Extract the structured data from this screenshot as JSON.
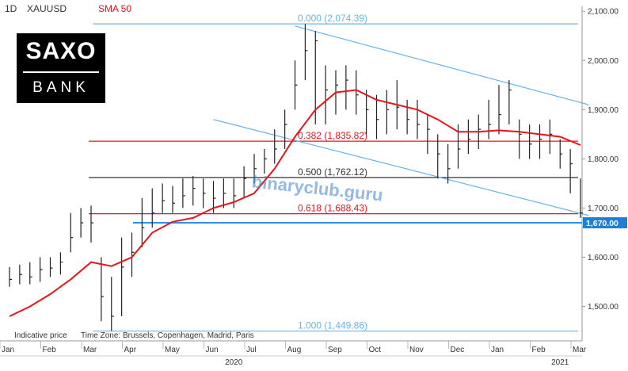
{
  "header": {
    "interval": "1D",
    "symbol": "XAUUSD",
    "indicator": "SMA 50"
  },
  "logo": {
    "line1": "SAXO",
    "line2": "BANK"
  },
  "footer": {
    "indicative": "Indicative price",
    "timezone": "Time Zone: Brussels, Copenhagen, Madrid, Paris"
  },
  "watermark": "binaryclub.guru",
  "colors": {
    "price": "#222222",
    "sma": "#e8141b",
    "fib_blue": "#6ab4e8",
    "fib_red": "#e8141b",
    "fib_black": "#333333",
    "channel": "#6ab4e8",
    "support": "#2f8fe0",
    "price_label_bg": "#1e7fd6",
    "watermark": "#3b7fd0"
  },
  "chart_data": {
    "type": "line",
    "title": "",
    "xlabel": "",
    "ylabel": "",
    "ylim": [
      1430,
      2110
    ],
    "grid": false,
    "legend": "none",
    "yticks": [
      "2,100.00",
      "2,000.00",
      "1,900.00",
      "1,800.00",
      "1,700.00",
      "1,600.00",
      "1,500.00"
    ],
    "ytick_values": [
      2100,
      2000,
      1900,
      1800,
      1700,
      1600,
      1500
    ],
    "month_labels": [
      "Jan",
      "Feb",
      "Mar",
      "Apr",
      "May",
      "Jun",
      "Jul",
      "Aug",
      "Sep",
      "Oct",
      "Nov",
      "Dec",
      "Jan",
      "Feb",
      "Mar"
    ],
    "month_index": [
      0,
      1,
      2,
      3,
      4,
      5,
      6,
      7,
      8,
      9,
      10,
      11,
      12,
      13,
      14
    ],
    "year_labels": [
      {
        "text": "2020",
        "month": 5.5
      },
      {
        "text": "2021",
        "month": 13.5
      }
    ],
    "series": [
      {
        "name": "XAUUSD",
        "style": "bars",
        "x": [
          0.0,
          0.25,
          0.5,
          0.75,
          1.0,
          1.25,
          1.5,
          1.75,
          2.0,
          2.25,
          2.5,
          2.75,
          3.0,
          3.25,
          3.5,
          3.75,
          4.0,
          4.25,
          4.5,
          4.75,
          5.0,
          5.25,
          5.5,
          5.75,
          6.0,
          6.25,
          6.5,
          6.75,
          7.0,
          7.25,
          7.5,
          7.75,
          8.0,
          8.25,
          8.5,
          8.75,
          9.0,
          9.25,
          9.5,
          9.75,
          10.0,
          10.25,
          10.5,
          10.75,
          11.0,
          11.25,
          11.5,
          11.75,
          12.0,
          12.25,
          12.5,
          12.75,
          13.0,
          13.25,
          13.5,
          13.75,
          14.0
        ],
        "values": [
          1555,
          1565,
          1560,
          1575,
          1578,
          1590,
          1640,
          1670,
          1670,
          1520,
          1480,
          1580,
          1610,
          1660,
          1690,
          1715,
          1710,
          1725,
          1740,
          1730,
          1720,
          1730,
          1725,
          1760,
          1780,
          1800,
          1820,
          1870,
          1950,
          2020,
          2040,
          1940,
          1950,
          1960,
          1930,
          1900,
          1880,
          1900,
          1905,
          1880,
          1870,
          1860,
          1810,
          1780,
          1820,
          1840,
          1860,
          1870,
          1890,
          1940,
          1850,
          1830,
          1840,
          1850,
          1810,
          1790,
          1690
        ],
        "high": [
          1580,
          1585,
          1590,
          1600,
          1600,
          1610,
          1690,
          1700,
          1705,
          1600,
          1560,
          1640,
          1650,
          1720,
          1740,
          1750,
          1745,
          1760,
          1765,
          1760,
          1755,
          1760,
          1760,
          1785,
          1810,
          1820,
          1860,
          1900,
          2000,
          2074,
          2060,
          1990,
          1980,
          1990,
          1980,
          1940,
          1930,
          1940,
          1960,
          1920,
          1920,
          1890,
          1850,
          1830,
          1870,
          1880,
          1890,
          1920,
          1950,
          1960,
          1880,
          1870,
          1870,
          1880,
          1840,
          1820,
          1760
        ],
        "low": [
          1540,
          1545,
          1545,
          1550,
          1560,
          1565,
          1610,
          1640,
          1630,
          1470,
          1450,
          1480,
          1560,
          1620,
          1660,
          1690,
          1690,
          1700,
          1705,
          1700,
          1690,
          1700,
          1700,
          1720,
          1750,
          1770,
          1790,
          1820,
          1900,
          1960,
          1870,
          1870,
          1890,
          1900,
          1890,
          1850,
          1840,
          1850,
          1860,
          1850,
          1840,
          1810,
          1760,
          1750,
          1780,
          1810,
          1820,
          1840,
          1850,
          1870,
          1800,
          1800,
          1800,
          1810,
          1780,
          1730,
          1680
        ]
      },
      {
        "name": "SMA 50",
        "style": "line",
        "x": [
          0.0,
          0.5,
          1.0,
          1.5,
          2.0,
          2.5,
          3.0,
          3.5,
          4.0,
          4.5,
          5.0,
          5.5,
          6.0,
          6.5,
          7.0,
          7.5,
          8.0,
          8.5,
          9.0,
          9.5,
          10.0,
          10.5,
          11.0,
          11.5,
          12.0,
          12.5,
          13.0,
          13.5,
          14.0
        ],
        "values": [
          1480,
          1500,
          1525,
          1555,
          1590,
          1582,
          1600,
          1650,
          1672,
          1680,
          1700,
          1712,
          1730,
          1780,
          1845,
          1900,
          1935,
          1940,
          1920,
          1910,
          1900,
          1880,
          1855,
          1855,
          1858,
          1855,
          1850,
          1845,
          1828
        ]
      }
    ],
    "levels": [
      {
        "label": "0.000 (2,074.39)",
        "value": 2074.39,
        "kind": "fib_blue"
      },
      {
        "label": "0.382 (1,835.82)",
        "value": 1835.82,
        "kind": "fib_red"
      },
      {
        "label": "0.500 (1,762.12)",
        "value": 1762.12,
        "kind": "fib_black"
      },
      {
        "label": "0.618 (1,688.43)",
        "value": 1688.43,
        "kind": "fib_red"
      },
      {
        "label": "1.000 (1,449.86)",
        "value": 1449.86,
        "kind": "fib_blue"
      }
    ],
    "support_level": {
      "label": "1,670.00",
      "value": 1670
    },
    "channel": [
      {
        "x1": 7.0,
        "y1": 2070,
        "x2": 14.2,
        "y2": 1910
      },
      {
        "x1": 5.0,
        "y1": 1880,
        "x2": 14.2,
        "y2": 1685
      }
    ]
  }
}
